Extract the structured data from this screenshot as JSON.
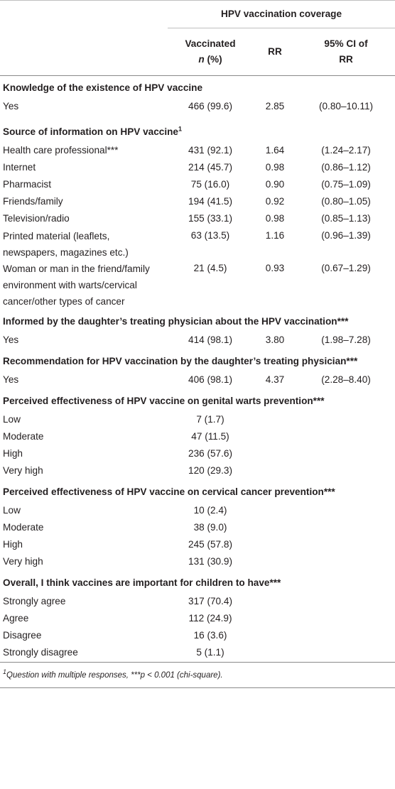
{
  "table": {
    "group_header": "HPV vaccination coverage",
    "col_vaccinated_line1": "Vaccinated",
    "col_vaccinated_n": "n",
    "col_vaccinated_pct": " (%)",
    "col_rr": "RR",
    "col_ci_line1": "95% CI of",
    "col_ci_line2": "RR",
    "sections": [
      {
        "title": "Knowledge of the existence of HPV vaccine",
        "sup": "",
        "rows": [
          {
            "label": "Yes",
            "vaccinated": "466 (99.6)",
            "rr": "2.85",
            "ci": "(0.80–10.11)"
          }
        ]
      },
      {
        "title": "Source of information on HPV vaccine",
        "sup": "1",
        "rows": [
          {
            "label": "Health care professional***",
            "vaccinated": "431 (92.1)",
            "rr": "1.64",
            "ci": "(1.24–2.17)"
          },
          {
            "label": "Internet",
            "vaccinated": "214 (45.7)",
            "rr": "0.98",
            "ci": "(0.86–1.12)"
          },
          {
            "label": "Pharmacist",
            "vaccinated": "75 (16.0)",
            "rr": "0.90",
            "ci": "(0.75–1.09)"
          },
          {
            "label": "Friends/family",
            "vaccinated": "194 (41.5)",
            "rr": "0.92",
            "ci": "(0.80–1.05)"
          },
          {
            "label": "Television/radio",
            "vaccinated": "155 (33.1)",
            "rr": "0.98",
            "ci": "(0.85–1.13)"
          },
          {
            "label": "Printed material (leaflets, newspapers, magazines etc.)",
            "vaccinated": "63 (13.5)",
            "rr": "1.16",
            "ci": "(0.96–1.39)"
          },
          {
            "label": "Woman or man in the friend/family environment with warts/cervical cancer/other types of cancer",
            "vaccinated": "21 (4.5)",
            "rr": "0.93",
            "ci": "(0.67–1.29)"
          }
        ]
      },
      {
        "title": "Informed by the daughter’s treating physician about the HPV vaccination***",
        "sup": "",
        "rows": [
          {
            "label": "Yes",
            "vaccinated": "414 (98.1)",
            "rr": "3.80",
            "ci": "(1.98–7.28)"
          }
        ]
      },
      {
        "title": "Recommendation for HPV vaccination by the daughter’s treating physician***",
        "sup": "",
        "rows": [
          {
            "label": "Yes",
            "vaccinated": "406 (98.1)",
            "rr": "4.37",
            "ci": "(2.28–8.40)"
          }
        ]
      },
      {
        "title": "Perceived effectiveness of HPV vaccine on genital warts prevention***",
        "sup": "",
        "rows": [
          {
            "label": "Low",
            "vaccinated": "7 (1.7)",
            "rr": "",
            "ci": ""
          },
          {
            "label": "Moderate",
            "vaccinated": "47 (11.5)",
            "rr": "",
            "ci": ""
          },
          {
            "label": "High",
            "vaccinated": "236 (57.6)",
            "rr": "",
            "ci": ""
          },
          {
            "label": "Very high",
            "vaccinated": "120 (29.3)",
            "rr": "",
            "ci": ""
          }
        ]
      },
      {
        "title": "Perceived effectiveness of HPV vaccine on cervical cancer prevention***",
        "sup": "",
        "rows": [
          {
            "label": "Low",
            "vaccinated": "10 (2.4)",
            "rr": "",
            "ci": ""
          },
          {
            "label": "Moderate",
            "vaccinated": "38 (9.0)",
            "rr": "",
            "ci": ""
          },
          {
            "label": "High",
            "vaccinated": "245 (57.8)",
            "rr": "",
            "ci": ""
          },
          {
            "label": "Very high",
            "vaccinated": "131 (30.9)",
            "rr": "",
            "ci": ""
          }
        ]
      },
      {
        "title": "Overall, I think vaccines are important for children to have***",
        "sup": "",
        "rows": [
          {
            "label": "Strongly agree",
            "vaccinated": "317 (70.4)",
            "rr": "",
            "ci": ""
          },
          {
            "label": "Agree",
            "vaccinated": "112 (24.9)",
            "rr": "",
            "ci": ""
          },
          {
            "label": "Disagree",
            "vaccinated": "16 (3.6)",
            "rr": "",
            "ci": ""
          },
          {
            "label": "Strongly disagree",
            "vaccinated": "5 (1.1)",
            "rr": "",
            "ci": ""
          }
        ]
      }
    ],
    "footnote_sup": "1",
    "footnote_text": "Question with multiple responses, ***p < 0.001 (chi-square)."
  }
}
